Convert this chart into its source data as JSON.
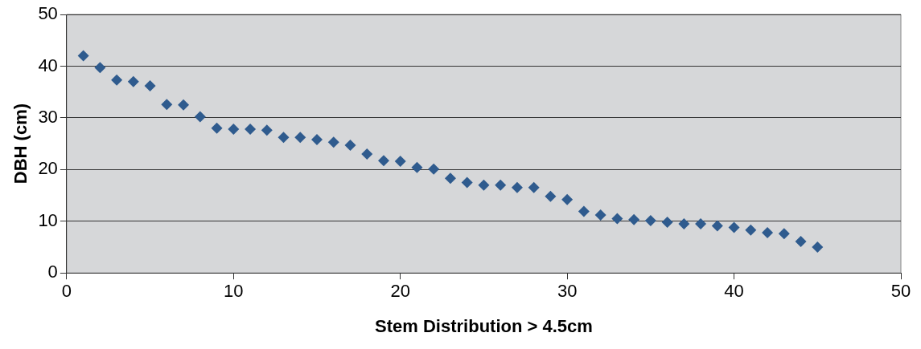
{
  "chart_data": {
    "type": "scatter",
    "xlabel": "Stem Distribution > 4.5cm",
    "ylabel": "DBH (cm)",
    "x": [
      1,
      2,
      3,
      4,
      5,
      6,
      7,
      8,
      9,
      10,
      11,
      12,
      13,
      14,
      15,
      16,
      17,
      18,
      19,
      20,
      21,
      22,
      23,
      24,
      25,
      26,
      27,
      28,
      29,
      30,
      31,
      32,
      33,
      34,
      35,
      36,
      37,
      38,
      39,
      40,
      41,
      42,
      43,
      44,
      45
    ],
    "series": [
      {
        "color": "#2f5b8e",
        "values": [
          42,
          39.7,
          37.3,
          37,
          36.2,
          32.6,
          32.5,
          30.2,
          28,
          27.8,
          27.8,
          27.6,
          26.2,
          26.2,
          25.8,
          25.3,
          24.7,
          23,
          21.7,
          21.6,
          20.4,
          20.1,
          18.3,
          17.5,
          17,
          17,
          16.5,
          16.5,
          14.8,
          14.2,
          11.9,
          11.2,
          10.5,
          10.3,
          10.1,
          9.8,
          9.5,
          9.5,
          9.1,
          8.8,
          8.3,
          7.8,
          7.6,
          6.1,
          5
        ]
      }
    ],
    "xlim": [
      0,
      50
    ],
    "xticks": [
      0,
      10,
      20,
      30,
      40,
      50
    ],
    "ylim": [
      0,
      50
    ],
    "yticks": [
      0,
      10,
      20,
      30,
      40,
      50
    ],
    "grid": "y",
    "marker": "diamond"
  }
}
